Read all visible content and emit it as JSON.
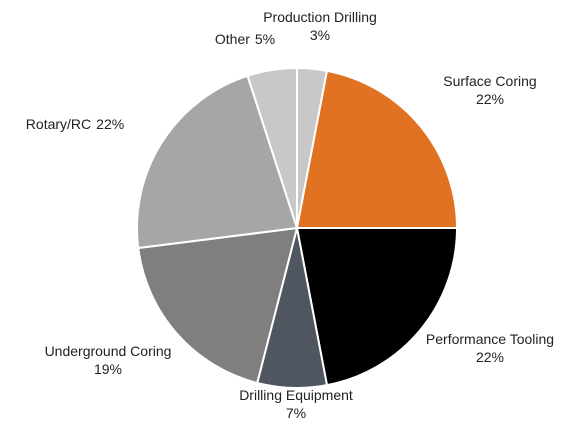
{
  "chart_data": {
    "type": "pie",
    "categories": [
      "Production Drilling",
      "Surface Coring",
      "Performance Tooling",
      "Drilling Equipment",
      "Underground Coring",
      "Rotary/RC",
      "Other"
    ],
    "values": [
      3,
      22,
      22,
      7,
      19,
      22,
      5
    ],
    "value_labels": [
      "3%",
      "22%",
      "22%",
      "7%",
      "19%",
      "22%",
      "5%"
    ],
    "colors": [
      "#c8c8c8",
      "#e07222",
      "#000000",
      "#4f5660",
      "#7f7f7f",
      "#a6a6a6",
      "#c8c8c8"
    ]
  }
}
